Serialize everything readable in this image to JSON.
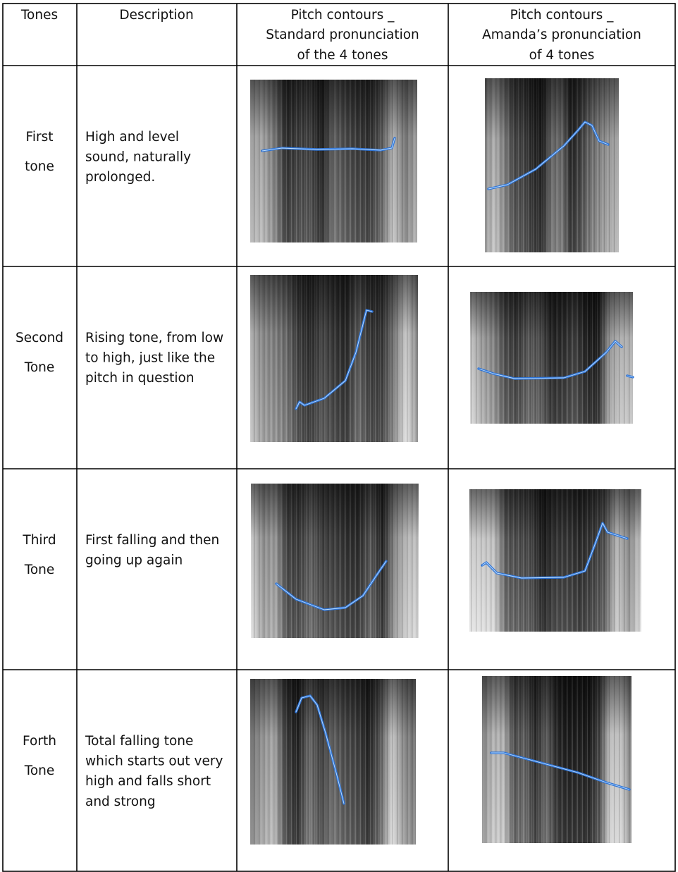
{
  "header": [
    {
      "lines": [
        "Tones"
      ]
    },
    {
      "lines": [
        "Description"
      ]
    },
    {
      "lines": [
        "Pitch contours _",
        "Standard pronunciation",
        "of the 4 tones"
      ]
    },
    {
      "lines": [
        "Pitch contours _",
        "Amanda’s pronunciation",
        "of 4 tones"
      ]
    }
  ],
  "rows": [
    {
      "tone": [
        "First",
        "tone"
      ],
      "description": [
        "High and level",
        "sound, naturally",
        "prolonged."
      ]
    },
    {
      "tone": [
        "Second",
        "Tone"
      ],
      "description": [
        "Rising tone, from low",
        "to high, just like the",
        "pitch in question"
      ]
    },
    {
      "tone": [
        "Third",
        "Tone"
      ],
      "description": [
        "First falling and then",
        "going up again"
      ]
    },
    {
      "tone": [
        "Forth",
        "Tone"
      ],
      "description": [
        "Total falling tone",
        "which starts out very",
        "high and falls short",
        "and strong"
      ]
    }
  ]
}
